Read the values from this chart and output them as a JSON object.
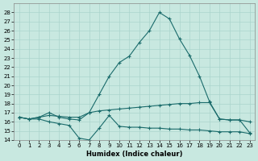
{
  "xlabel": "Humidex (Indice chaleur)",
  "xlim": [
    -0.5,
    23.5
  ],
  "ylim": [
    14,
    29
  ],
  "yticks": [
    14,
    15,
    16,
    17,
    18,
    19,
    20,
    21,
    22,
    23,
    24,
    25,
    26,
    27,
    28
  ],
  "xticks": [
    0,
    1,
    2,
    3,
    4,
    5,
    6,
    7,
    8,
    9,
    10,
    11,
    12,
    13,
    14,
    15,
    16,
    17,
    18,
    19,
    20,
    21,
    22,
    23
  ],
  "bg_color": "#c8e8e0",
  "grid_color": "#aad4cc",
  "line_color": "#1a6b6b",
  "series": [
    {
      "x": [
        0,
        1,
        2,
        3,
        4,
        5,
        6,
        7,
        8,
        9,
        10,
        11,
        12,
        13,
        14,
        15,
        16,
        17,
        18,
        19,
        20,
        21,
        22,
        23
      ],
      "y": [
        16.5,
        16.3,
        16.5,
        17.0,
        16.5,
        16.3,
        16.2,
        17.0,
        19.0,
        21.0,
        22.5,
        23.2,
        24.7,
        26.0,
        28.0,
        27.3,
        25.1,
        23.3,
        21.0,
        18.2,
        16.3,
        16.2,
        16.2,
        16.0
      ]
    },
    {
      "x": [
        0,
        1,
        2,
        3,
        4,
        5,
        6,
        7,
        8,
        9,
        10,
        11,
        12,
        13,
        14,
        15,
        16,
        17,
        18,
        19,
        20,
        21,
        22,
        23
      ],
      "y": [
        16.5,
        16.3,
        16.5,
        16.7,
        16.6,
        16.5,
        16.5,
        17.0,
        17.2,
        17.3,
        17.4,
        17.5,
        17.6,
        17.7,
        17.8,
        17.9,
        18.0,
        18.0,
        18.1,
        18.1,
        16.3,
        16.2,
        16.2,
        14.8
      ]
    },
    {
      "x": [
        0,
        1,
        2,
        3,
        4,
        5,
        6,
        7,
        8,
        9,
        10,
        11,
        12,
        13,
        14,
        15,
        16,
        17,
        18,
        19,
        20,
        21,
        22,
        23
      ],
      "y": [
        16.5,
        16.3,
        16.3,
        16.0,
        15.8,
        15.6,
        14.2,
        14.0,
        15.3,
        16.7,
        15.5,
        15.4,
        15.4,
        15.3,
        15.3,
        15.2,
        15.2,
        15.1,
        15.1,
        15.0,
        14.9,
        14.9,
        14.9,
        14.7
      ]
    }
  ]
}
